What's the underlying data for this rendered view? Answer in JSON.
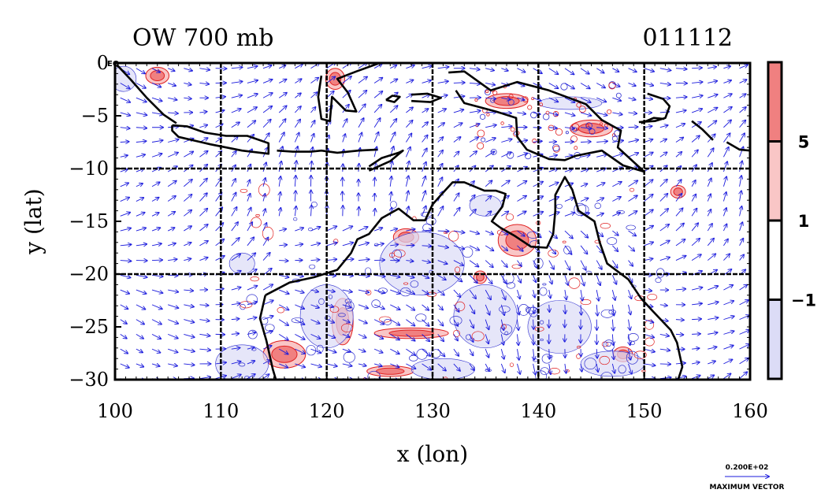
{
  "chart_data": {
    "type": "heatmap",
    "title": "OW 700 mb",
    "date_label": "011112",
    "xlabel": "x (lon)",
    "ylabel": "y (lat)",
    "xlim": [
      100,
      160
    ],
    "ylim": [
      -30,
      0
    ],
    "x_ticks": [
      100,
      110,
      120,
      130,
      140,
      150,
      160
    ],
    "y_ticks": [
      0,
      -5,
      -10,
      -15,
      -20,
      -25,
      -30
    ],
    "y_tick_labels": [
      "0",
      "−5",
      "−10",
      "−15",
      "−20",
      "−25",
      "−30"
    ],
    "x_tick_labels": [
      "100",
      "110",
      "120",
      "130",
      "140",
      "150",
      "160"
    ],
    "eq_label": "EQ",
    "gridlines_lon": [
      110,
      120,
      130,
      140,
      150
    ],
    "gridlines_lat": [
      -10,
      -20
    ],
    "grid": true,
    "colorbar": {
      "levels": [
        5,
        1,
        -1
      ],
      "level_labels": [
        "5",
        "1",
        "−1"
      ],
      "colors": {
        "strong_pos": "#f08080",
        "weak_pos": "#f9c6c6",
        "neutral": "#ffffff",
        "neg": "#dcdcf6"
      }
    },
    "vector_legend": {
      "value_label": "0.200E+02",
      "caption": "MAXIMUM VECTOR"
    },
    "colors": {
      "vector": "#1a1adc",
      "contour_pos": "#e02020",
      "contour_neg": "#3030d0",
      "coast": "#000000"
    },
    "features": {
      "coastlines": [
        [
          [
            100.2,
            -0.2
          ],
          [
            101.5,
            -1.6
          ],
          [
            103.0,
            -3.3
          ],
          [
            104.6,
            -4.9
          ],
          [
            105.8,
            -5.7
          ]
        ],
        [
          [
            105.4,
            -5.9
          ],
          [
            106.8,
            -6.0
          ],
          [
            108.5,
            -6.6
          ],
          [
            110.5,
            -6.9
          ],
          [
            112.5,
            -6.9
          ],
          [
            114.5,
            -7.6
          ],
          [
            114.5,
            -8.6
          ],
          [
            112.0,
            -8.3
          ],
          [
            109.0,
            -7.7
          ],
          [
            106.0,
            -7.0
          ],
          [
            105.4,
            -6.4
          ],
          [
            105.4,
            -5.9
          ]
        ],
        [
          [
            115.3,
            -8.3
          ],
          [
            116.8,
            -8.4
          ],
          [
            118.5,
            -8.4
          ],
          [
            119.5,
            -8.3
          ],
          [
            121.0,
            -8.5
          ],
          [
            123.0,
            -8.3
          ],
          [
            124.8,
            -8.2
          ]
        ],
        [
          [
            124.0,
            -9.8
          ],
          [
            125.2,
            -9.0
          ],
          [
            126.8,
            -8.5
          ],
          [
            127.2,
            -8.3
          ],
          [
            126.0,
            -9.3
          ],
          [
            124.0,
            -10.2
          ]
        ],
        [
          [
            119.5,
            -1.2
          ],
          [
            119.2,
            -3.2
          ],
          [
            119.5,
            -5.3
          ],
          [
            120.3,
            -5.5
          ],
          [
            120.5,
            -3.2
          ],
          [
            121.8,
            -4.5
          ],
          [
            122.8,
            -4.6
          ],
          [
            122.0,
            -2.8
          ],
          [
            121.0,
            -1.5
          ],
          [
            122.8,
            -0.8
          ],
          [
            125.0,
            0.0
          ]
        ],
        [
          [
            125.6,
            -3.5
          ],
          [
            126.2,
            -3.1
          ],
          [
            126.9,
            -3.2
          ],
          [
            126.4,
            -3.7
          ],
          [
            125.6,
            -3.5
          ]
        ],
        [
          [
            128.0,
            -3.0
          ],
          [
            129.5,
            -2.9
          ],
          [
            130.8,
            -3.3
          ],
          [
            129.8,
            -3.7
          ],
          [
            128.0,
            -3.6
          ]
        ],
        [
          [
            131.5,
            -0.9
          ],
          [
            133.0,
            -0.8
          ],
          [
            135.5,
            -2.6
          ],
          [
            138.0,
            -1.8
          ],
          [
            141.0,
            -2.6
          ],
          [
            144.5,
            -3.9
          ],
          [
            146.0,
            -5.4
          ],
          [
            147.8,
            -6.4
          ],
          [
            147.5,
            -8.0
          ],
          [
            150.0,
            -10.3
          ],
          [
            148.0,
            -9.7
          ],
          [
            146.0,
            -8.3
          ],
          [
            143.5,
            -8.8
          ],
          [
            142.5,
            -9.2
          ],
          [
            141.0,
            -9.1
          ],
          [
            138.9,
            -8.2
          ],
          [
            138.0,
            -7.0
          ],
          [
            137.9,
            -5.2
          ],
          [
            136.0,
            -4.6
          ],
          [
            134.5,
            -4.2
          ],
          [
            133.0,
            -3.8
          ],
          [
            132.2,
            -2.6
          ]
        ],
        [
          [
            150.3,
            -2.9
          ],
          [
            151.8,
            -3.4
          ],
          [
            152.4,
            -4.1
          ],
          [
            152.0,
            -5.2
          ],
          [
            151.0,
            -5.5
          ],
          [
            149.5,
            -5.6
          ]
        ],
        [
          [
            149.7,
            -5.7
          ],
          [
            150.9,
            -5.2
          ],
          [
            151.9,
            -5.3
          ]
        ],
        [
          [
            154.5,
            -5.5
          ],
          [
            155.5,
            -6.3
          ],
          [
            156.5,
            -7.3
          ]
        ],
        [
          [
            157.8,
            -7.5
          ],
          [
            159.0,
            -8.2
          ],
          [
            160.0,
            -8.3
          ]
        ],
        [
          [
            114.2,
            -22.0
          ],
          [
            113.7,
            -24.2
          ],
          [
            114.3,
            -26.3
          ],
          [
            114.9,
            -29.0
          ],
          [
            115.2,
            -30.0
          ]
        ],
        [
          [
            114.2,
            -22.0
          ],
          [
            116.5,
            -20.8
          ],
          [
            118.8,
            -20.3
          ],
          [
            121.0,
            -19.6
          ],
          [
            122.3,
            -18.0
          ],
          [
            122.9,
            -16.7
          ],
          [
            124.0,
            -16.2
          ],
          [
            125.2,
            -14.7
          ],
          [
            126.8,
            -13.8
          ],
          [
            128.2,
            -14.9
          ],
          [
            129.3,
            -14.9
          ],
          [
            130.0,
            -13.4
          ],
          [
            130.8,
            -12.5
          ],
          [
            131.9,
            -11.3
          ],
          [
            133.0,
            -11.3
          ],
          [
            134.9,
            -12.1
          ],
          [
            136.0,
            -12.1
          ],
          [
            136.9,
            -12.4
          ],
          [
            136.6,
            -13.6
          ],
          [
            136.0,
            -14.4
          ],
          [
            135.6,
            -15.0
          ],
          [
            136.4,
            -15.6
          ],
          [
            137.8,
            -16.4
          ],
          [
            139.3,
            -17.4
          ],
          [
            140.8,
            -17.5
          ],
          [
            141.4,
            -16.2
          ],
          [
            141.6,
            -14.0
          ],
          [
            141.6,
            -12.5
          ],
          [
            142.5,
            -10.8
          ],
          [
            143.2,
            -12.0
          ],
          [
            143.8,
            -14.0
          ],
          [
            145.3,
            -15.0
          ],
          [
            145.8,
            -17.0
          ],
          [
            146.5,
            -19.0
          ],
          [
            148.5,
            -20.5
          ],
          [
            149.7,
            -22.3
          ],
          [
            150.8,
            -23.5
          ],
          [
            152.5,
            -25.3
          ],
          [
            153.1,
            -26.5
          ],
          [
            153.6,
            -28.8
          ],
          [
            153.2,
            -30.0
          ]
        ]
      ]
    }
  }
}
